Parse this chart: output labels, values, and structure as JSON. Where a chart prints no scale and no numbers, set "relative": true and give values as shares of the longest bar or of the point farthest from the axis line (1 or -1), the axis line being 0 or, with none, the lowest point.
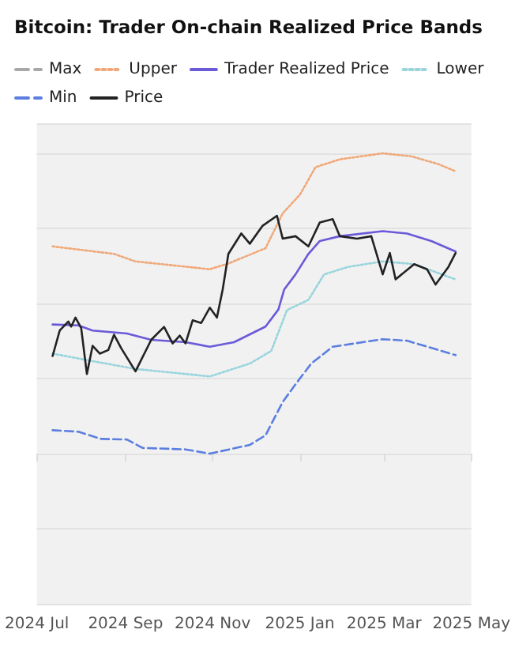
{
  "chart_data": {
    "type": "line",
    "title": "Bitcoin: Trader On-chain Realized Price Bands",
    "relative": true,
    "grid": "y",
    "legend": "top",
    "marker": "none",
    "xlim": [
      "2024-07-01",
      "2025-05-01"
    ],
    "xticks": [
      {
        "value": "2024-07-01",
        "label": "2024 Jul"
      },
      {
        "value": "2024-09-01",
        "label": "2024 Sep"
      },
      {
        "value": "2024-11-01",
        "label": "2024 Nov"
      },
      {
        "value": "2025-01-01",
        "label": "2025 Jan"
      },
      {
        "value": "2025-03-01",
        "label": "2025 Mar"
      },
      {
        "value": "2025-05-01",
        "label": "2025 May"
      }
    ],
    "series": [
      {
        "name": "Max",
        "color": "#a8a8a8",
        "line_style": "dashed"
      },
      {
        "name": "Upper",
        "color": "#f0a878",
        "line_style": "dotted",
        "x": [
          "2024-07-12",
          "2024-08-24",
          "2024-09-08",
          "2024-10-30",
          "2024-11-12",
          "2024-12-08",
          "2024-12-20",
          "2025-01-01",
          "2025-01-12",
          "2025-01-29",
          "2025-02-28",
          "2025-03-20",
          "2025-04-08",
          "2025-04-20"
        ],
        "values": [
          0.69,
          0.665,
          0.64,
          0.614,
          0.633,
          0.684,
          0.8,
          0.862,
          0.954,
          0.98,
          1.0,
          0.99,
          0.964,
          0.94
        ]
      },
      {
        "name": "Trader Realized Price",
        "color": "#6a5ad8",
        "line_style": "solid",
        "x": [
          "2024-07-12",
          "2024-07-30",
          "2024-08-09",
          "2024-09-02",
          "2024-09-19",
          "2024-10-13",
          "2024-10-30",
          "2024-11-16",
          "2024-12-08",
          "2024-12-17",
          "2024-12-21",
          "2024-12-29",
          "2025-01-07",
          "2025-01-15",
          "2025-01-29",
          "2025-02-28",
          "2025-03-17",
          "2025-04-03",
          "2025-04-20"
        ],
        "values": [
          0.43,
          0.427,
          0.41,
          0.4,
          0.379,
          0.371,
          0.356,
          0.371,
          0.423,
          0.48,
          0.546,
          0.597,
          0.665,
          0.708,
          0.724,
          0.741,
          0.733,
          0.708,
          0.673
        ]
      },
      {
        "name": "Lower",
        "color": "#98d4dc",
        "line_style": "dotted",
        "x": [
          "2024-07-12",
          "2024-08-09",
          "2024-09-08",
          "2024-10-30",
          "2024-11-27",
          "2024-12-12",
          "2024-12-23",
          "2025-01-07",
          "2025-01-18",
          "2025-02-04",
          "2025-02-28",
          "2025-03-22",
          "2025-04-20"
        ],
        "values": [
          0.333,
          0.308,
          0.282,
          0.257,
          0.3,
          0.342,
          0.478,
          0.512,
          0.597,
          0.622,
          0.64,
          0.631,
          0.58
        ]
      },
      {
        "name": "Min",
        "color": "#5b7ee0",
        "line_style": "dashed",
        "x": [
          "2024-07-12",
          "2024-07-30",
          "2024-08-15",
          "2024-09-02",
          "2024-09-13",
          "2024-10-13",
          "2024-10-30",
          "2024-11-27",
          "2024-12-08",
          "2024-12-20",
          "2024-12-29",
          "2025-01-09",
          "2025-01-24",
          "2025-02-28",
          "2025-03-17",
          "2025-04-20"
        ],
        "values": [
          0.078,
          0.073,
          0.049,
          0.047,
          0.019,
          0.014,
          0,
          0.029,
          0.061,
          0.172,
          0.231,
          0.3,
          0.356,
          0.381,
          0.376,
          0.328
        ]
      },
      {
        "name": "Price",
        "color": "#222222",
        "line_style": "solid",
        "x": [
          "2024-07-12",
          "2024-07-17",
          "2024-07-23",
          "2024-07-25",
          "2024-07-28",
          "2024-08-01",
          "2024-08-05",
          "2024-08-09",
          "2024-08-14",
          "2024-08-20",
          "2024-08-24",
          "2024-08-29",
          "2024-09-08",
          "2024-09-19",
          "2024-09-28",
          "2024-10-04",
          "2024-10-09",
          "2024-10-13",
          "2024-10-18",
          "2024-10-24",
          "2024-10-30",
          "2024-11-04",
          "2024-11-08",
          "2024-11-12",
          "2024-11-21",
          "2024-11-27",
          "2024-12-06",
          "2024-12-16",
          "2024-12-20",
          "2024-12-29",
          "2025-01-07",
          "2025-01-15",
          "2025-01-24",
          "2025-01-29",
          "2025-02-10",
          "2025-02-20",
          "2025-02-28",
          "2025-03-05",
          "2025-03-09",
          "2025-03-22",
          "2025-03-31",
          "2025-04-06",
          "2025-04-15",
          "2025-04-20"
        ],
        "values": [
          0.325,
          0.41,
          0.44,
          0.423,
          0.453,
          0.418,
          0.265,
          0.359,
          0.333,
          0.345,
          0.396,
          0.351,
          0.274,
          0.379,
          0.422,
          0.367,
          0.393,
          0.367,
          0.444,
          0.435,
          0.486,
          0.453,
          0.546,
          0.665,
          0.733,
          0.699,
          0.759,
          0.792,
          0.716,
          0.724,
          0.69,
          0.77,
          0.781,
          0.724,
          0.716,
          0.724,
          0.597,
          0.668,
          0.58,
          0.631,
          0.614,
          0.563,
          0.622,
          0.668
        ]
      }
    ]
  }
}
